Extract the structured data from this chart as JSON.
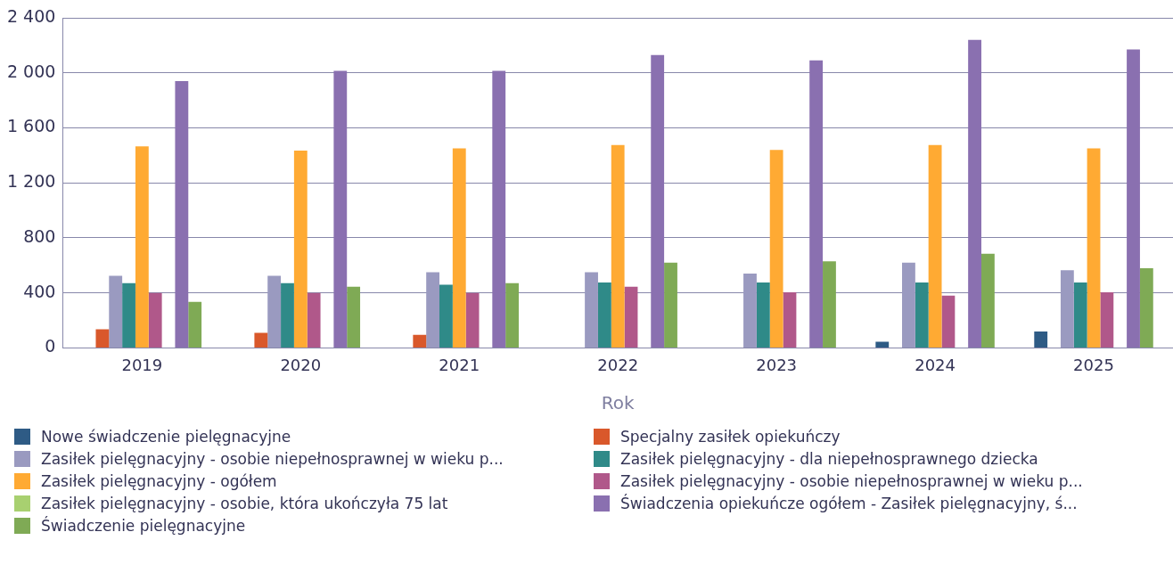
{
  "chart_data": {
    "type": "bar",
    "xlabel": "Rok",
    "categories": [
      "2019",
      "2020",
      "2021",
      "2022",
      "2023",
      "2024",
      "2025"
    ],
    "series": [
      {
        "name": "Nowe świadczenie pielęgnacyjne",
        "color": "#2e5b85",
        "values": [
          null,
          null,
          null,
          null,
          null,
          45,
          120
        ]
      },
      {
        "name": "Specjalny zasiłek opiekuńczy",
        "color": "#d9582b",
        "values": [
          135,
          110,
          95,
          null,
          null,
          null,
          null
        ]
      },
      {
        "name": "Zasiłek pielęgnacyjny -  osobie niepełnosprawnej w wieku p...",
        "color": "#9a9ac0",
        "values": [
          525,
          525,
          550,
          550,
          540,
          620,
          565
        ]
      },
      {
        "name": "Zasiłek pielęgnacyjny - dla niepełnosprawnego dziecka",
        "color": "#2f8a88",
        "values": [
          470,
          470,
          460,
          475,
          475,
          475,
          475
        ]
      },
      {
        "name": "Zasiłek pielęgnacyjny - ogółem",
        "color": "#ffaa33",
        "values": [
          1465,
          1435,
          1450,
          1475,
          1440,
          1475,
          1450
        ]
      },
      {
        "name": "Zasiłek pielęgnacyjny - osobie niepełnosprawnej w wieku p...",
        "color": "#b0588a",
        "values": [
          400,
          400,
          400,
          445,
          405,
          380,
          405
        ]
      },
      {
        "name": "Zasiłek pielęgnacyjny - osobie, która ukończyła 75 lat",
        "color": "#a8d070",
        "values": [
          null,
          null,
          null,
          null,
          null,
          null,
          null
        ]
      },
      {
        "name": "Świadczenia opiekuńcze ogółem - Zasiłek pielęgnacyjny, ś...",
        "color": "#8a70b0",
        "values": [
          1940,
          2015,
          2015,
          2130,
          2090,
          2240,
          2170
        ]
      },
      {
        "name": "Świadczenie pielęgnacyjne",
        "color": "#7faa55",
        "values": [
          335,
          445,
          470,
          620,
          630,
          685,
          580
        ]
      }
    ],
    "ylim": [
      0,
      2400
    ],
    "yticks": [
      0,
      400,
      800,
      {
        "value": 1200,
        "label": "1 200"
      },
      {
        "value": 1600,
        "label": "1 600"
      },
      {
        "value": 2000,
        "label": "2 000"
      },
      {
        "value": 2400,
        "label": "2 400"
      }
    ],
    "grid": "y",
    "legend": "bottom"
  }
}
